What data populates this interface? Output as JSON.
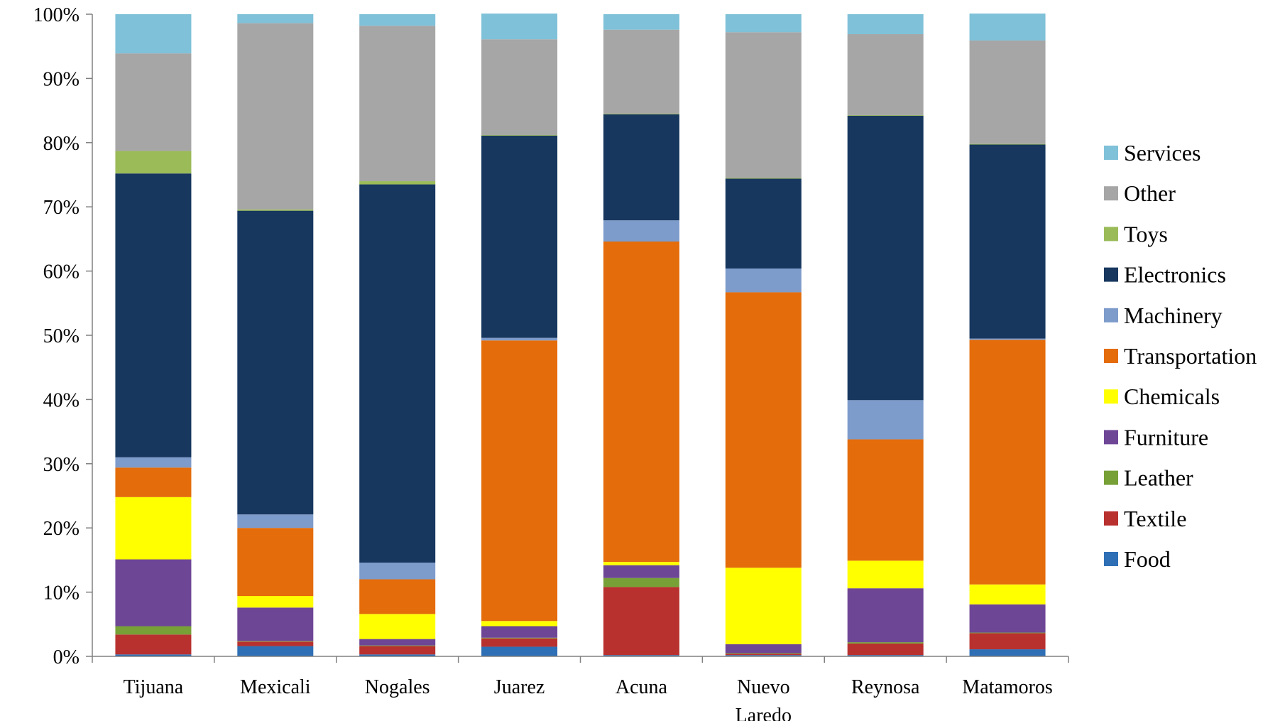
{
  "chart_data": {
    "type": "bar",
    "stacked": true,
    "percent": true,
    "title": "",
    "xlabel": "",
    "ylabel": "",
    "ylim": [
      0,
      100
    ],
    "yticks": [
      "0%",
      "10%",
      "20%",
      "30%",
      "40%",
      "50%",
      "60%",
      "70%",
      "80%",
      "90%",
      "100%"
    ],
    "grid": false,
    "legend_position": "right",
    "categories": [
      [
        "Tijuana"
      ],
      [
        "Mexicali"
      ],
      [
        "Nogales"
      ],
      [
        "Juarez"
      ],
      [
        "Acuna"
      ],
      [
        "Nuevo",
        "Laredo"
      ],
      [
        "Reynosa"
      ],
      [
        "Matamoros"
      ]
    ],
    "series": [
      {
        "name": "Food",
        "color": "#2E6FB5",
        "values": [
          0.3,
          1.6,
          0.3,
          1.5,
          0.2,
          0.2,
          0.2,
          1.1
        ]
      },
      {
        "name": "Textile",
        "color": "#B8312F",
        "values": [
          3.1,
          0.7,
          1.3,
          1.3,
          10.6,
          0.2,
          1.8,
          2.5
        ]
      },
      {
        "name": "Leather",
        "color": "#77A037",
        "values": [
          1.3,
          0.1,
          0.1,
          0.1,
          1.4,
          0.1,
          0.2,
          0.1
        ]
      },
      {
        "name": "Furniture",
        "color": "#6E4696",
        "values": [
          10.4,
          5.2,
          1.0,
          1.8,
          2.0,
          1.4,
          8.4,
          4.4
        ]
      },
      {
        "name": "Chemicals",
        "color": "#FFFF00",
        "values": [
          9.7,
          1.8,
          3.9,
          0.8,
          0.5,
          11.9,
          4.3,
          3.1
        ]
      },
      {
        "name": "Transportation",
        "color": "#E46C0A",
        "values": [
          4.6,
          10.6,
          5.4,
          43.7,
          49.9,
          42.9,
          18.9,
          38.1
        ]
      },
      {
        "name": "Machinery",
        "color": "#7D9BCB",
        "values": [
          1.6,
          2.1,
          2.6,
          0.4,
          3.3,
          3.7,
          6.1,
          0.2
        ]
      },
      {
        "name": "Electronics",
        "color": "#17375E",
        "values": [
          44.2,
          47.3,
          58.9,
          31.5,
          16.5,
          14.0,
          44.3,
          30.2
        ]
      },
      {
        "name": "Toys",
        "color": "#9BBB59",
        "values": [
          3.5,
          0.2,
          0.5,
          0.1,
          0.1,
          0.1,
          0.1,
          0.1
        ]
      },
      {
        "name": "Other",
        "color": "#A6A6A6",
        "values": [
          15.2,
          29.0,
          24.2,
          14.9,
          13.1,
          22.7,
          12.6,
          16.1
        ]
      },
      {
        "name": "Services",
        "color": "#7FC1D8",
        "values": [
          6.1,
          1.4,
          1.8,
          4.0,
          2.4,
          2.8,
          3.1,
          4.2
        ]
      }
    ]
  }
}
